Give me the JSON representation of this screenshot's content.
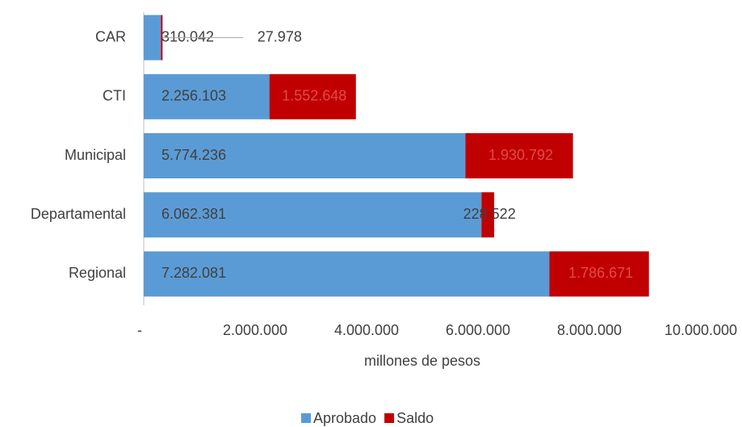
{
  "chart_data": {
    "type": "hbar-stacked",
    "categories": [
      "CAR",
      "CTI",
      "Municipal",
      "Departamental",
      "Regional"
    ],
    "series": [
      {
        "name": "Aprobado",
        "color": "#5b9bd5",
        "values": [
          310042,
          2256103,
          5774236,
          6062381,
          7282081
        ],
        "value_labels": [
          "310.042",
          "2.256.103",
          "5.774.236",
          "6.062.381",
          "7.282.081"
        ]
      },
      {
        "name": "Saldo",
        "color": "#c00000",
        "values": [
          27978,
          1552648,
          1930792,
          228522,
          1786671
        ],
        "value_labels": [
          "27.978",
          "1.552.648",
          "1.930.792",
          "228.522",
          "1.786.671"
        ]
      }
    ],
    "xlabel": "millones de pesos",
    "xlim": [
      0,
      10000000
    ],
    "xticks": [
      {
        "value": 0,
        "label": "-"
      },
      {
        "value": 2000000,
        "label": "2.000.000"
      },
      {
        "value": 4000000,
        "label": "4.000.000"
      },
      {
        "value": 6000000,
        "label": "6.000.000"
      },
      {
        "value": 8000000,
        "label": "8.000.000"
      },
      {
        "value": 10000000,
        "label": "10.000.000"
      }
    ],
    "legend": "bottom"
  }
}
